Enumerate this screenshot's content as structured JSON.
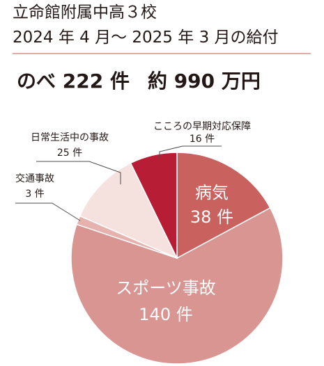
{
  "header": {
    "title_line1": "立命館附属中高３校",
    "title_line2": "2024 年 4 月〜 2025 年 3 月の給付"
  },
  "summary": {
    "count_text": "のべ 222 件",
    "amount_text": "約 990 万円"
  },
  "chart_data": {
    "type": "pie",
    "unit": "件",
    "total": 222,
    "slices": [
      {
        "name": "病気",
        "value": 38,
        "value_text": "38 件",
        "color": "#c9615e"
      },
      {
        "name": "スポーツ事故",
        "value": 140,
        "value_text": "140 件",
        "color": "#d89592"
      },
      {
        "name": "交通事故",
        "value": 3,
        "value_text": "3 件",
        "color": "#e6b2ae"
      },
      {
        "name": "日常生活中の事故",
        "value": 25,
        "value_text": "25 件",
        "color": "#f5e2de"
      },
      {
        "name": "こころの早期対応保障",
        "value": 16,
        "value_text": "16 件",
        "color": "#b81d36"
      }
    ]
  }
}
